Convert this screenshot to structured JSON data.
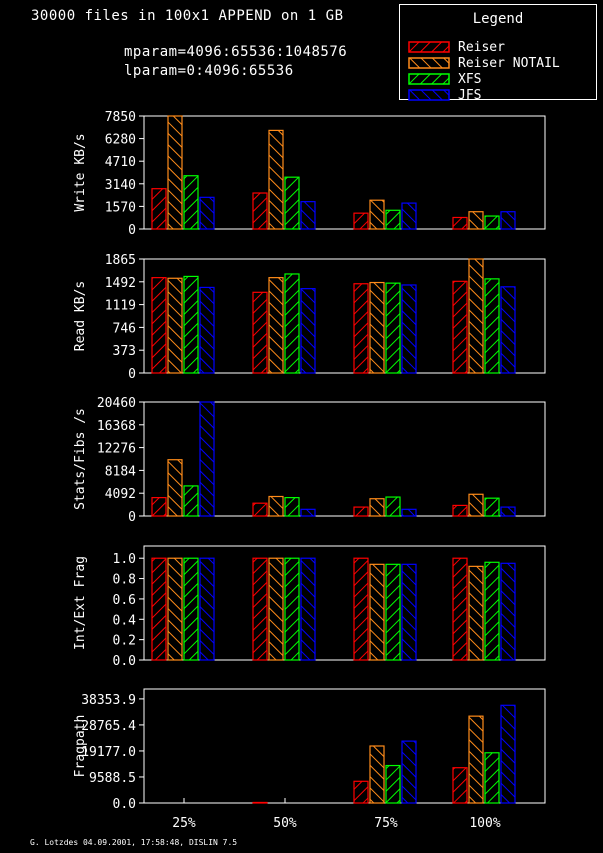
{
  "header": {
    "title": "30000 files in 100x1 APPEND on 1 GB",
    "mparam": "mparam=4096:65536:1048576",
    "lparam": "lparam=0:4096:65536"
  },
  "legend": {
    "title": "Legend",
    "placement": "top-right",
    "items": [
      {
        "label": "Reiser",
        "color": "#ff0000"
      },
      {
        "label": "Reiser NOTAIL",
        "color": "#ff8c1a"
      },
      {
        "label": "XFS",
        "color": "#00ff00"
      },
      {
        "label": "JFS",
        "color": "#0000ff"
      }
    ]
  },
  "credit": "G. Lotzdes 04.09.2001, 17:58:48, DISLIN 7.5",
  "chart_data": [
    {
      "type": "bar",
      "ylabel": "Write KB/s",
      "categories": [
        "25%",
        "50%",
        "75%",
        "100%"
      ],
      "yticks": [
        "0",
        "1570",
        "3140",
        "4710",
        "6280",
        "7850"
      ],
      "ylim": [
        0,
        7850
      ],
      "series": [
        {
          "name": "Reiser",
          "values": [
            2800,
            2500,
            1100,
            800
          ]
        },
        {
          "name": "Reiser NOTAIL",
          "values": [
            7850,
            6850,
            2000,
            1200
          ]
        },
        {
          "name": "XFS",
          "values": [
            3700,
            3600,
            1300,
            900
          ]
        },
        {
          "name": "JFS",
          "values": [
            2200,
            1900,
            1800,
            1200
          ]
        }
      ]
    },
    {
      "type": "bar",
      "ylabel": "Read KB/s",
      "categories": [
        "25%",
        "50%",
        "75%",
        "100%"
      ],
      "yticks": [
        "0",
        "373",
        "746",
        "1119",
        "1492",
        "1865"
      ],
      "ylim": [
        0,
        1865
      ],
      "series": [
        {
          "name": "Reiser",
          "values": [
            1560,
            1320,
            1460,
            1500
          ]
        },
        {
          "name": "Reiser NOTAIL",
          "values": [
            1550,
            1560,
            1480,
            1865
          ]
        },
        {
          "name": "XFS",
          "values": [
            1580,
            1620,
            1470,
            1540
          ]
        },
        {
          "name": "JFS",
          "values": [
            1400,
            1380,
            1440,
            1410
          ]
        }
      ]
    },
    {
      "type": "bar",
      "ylabel": "Stats/Fibs /s",
      "categories": [
        "25%",
        "50%",
        "75%",
        "100%"
      ],
      "yticks": [
        "0",
        "4092",
        "8184",
        "12276",
        "16368",
        "20460"
      ],
      "ylim": [
        0,
        20460
      ],
      "series": [
        {
          "name": "Reiser",
          "values": [
            3300,
            2300,
            1600,
            1900
          ]
        },
        {
          "name": "Reiser NOTAIL",
          "values": [
            10100,
            3500,
            3100,
            3900
          ]
        },
        {
          "name": "XFS",
          "values": [
            5400,
            3300,
            3400,
            3200
          ]
        },
        {
          "name": "JFS",
          "values": [
            20460,
            1200,
            1200,
            1600
          ]
        }
      ]
    },
    {
      "type": "bar",
      "ylabel": "Int/Ext Frag",
      "categories": [
        "25%",
        "50%",
        "75%",
        "100%"
      ],
      "yticks": [
        "0.0",
        "0.2",
        "0.4",
        "0.6",
        "0.8",
        "1.0"
      ],
      "ylim": [
        0,
        1.12
      ],
      "series": [
        {
          "name": "Reiser",
          "values": [
            1.0,
            1.0,
            1.0,
            1.0
          ]
        },
        {
          "name": "Reiser NOTAIL",
          "values": [
            1.0,
            1.0,
            0.94,
            0.92
          ]
        },
        {
          "name": "XFS",
          "values": [
            1.0,
            1.0,
            0.94,
            0.96
          ]
        },
        {
          "name": "JFS",
          "values": [
            1.0,
            1.0,
            0.94,
            0.95
          ]
        }
      ]
    },
    {
      "type": "bar",
      "ylabel": "Fragpath",
      "categories": [
        "25%",
        "50%",
        "75%",
        "100%"
      ],
      "yticks": [
        "0.0",
        "9588.5",
        "19177.0",
        "28765.4",
        "38353.9"
      ],
      "ylim": [
        0,
        42000
      ],
      "series": [
        {
          "name": "Reiser",
          "values": [
            0,
            200,
            8000,
            13000
          ]
        },
        {
          "name": "Reiser NOTAIL",
          "values": [
            0,
            0,
            21000,
            32000
          ]
        },
        {
          "name": "XFS",
          "values": [
            0,
            0,
            13800,
            18500
          ]
        },
        {
          "name": "JFS",
          "values": [
            0,
            0,
            22800,
            36000
          ]
        }
      ]
    }
  ]
}
